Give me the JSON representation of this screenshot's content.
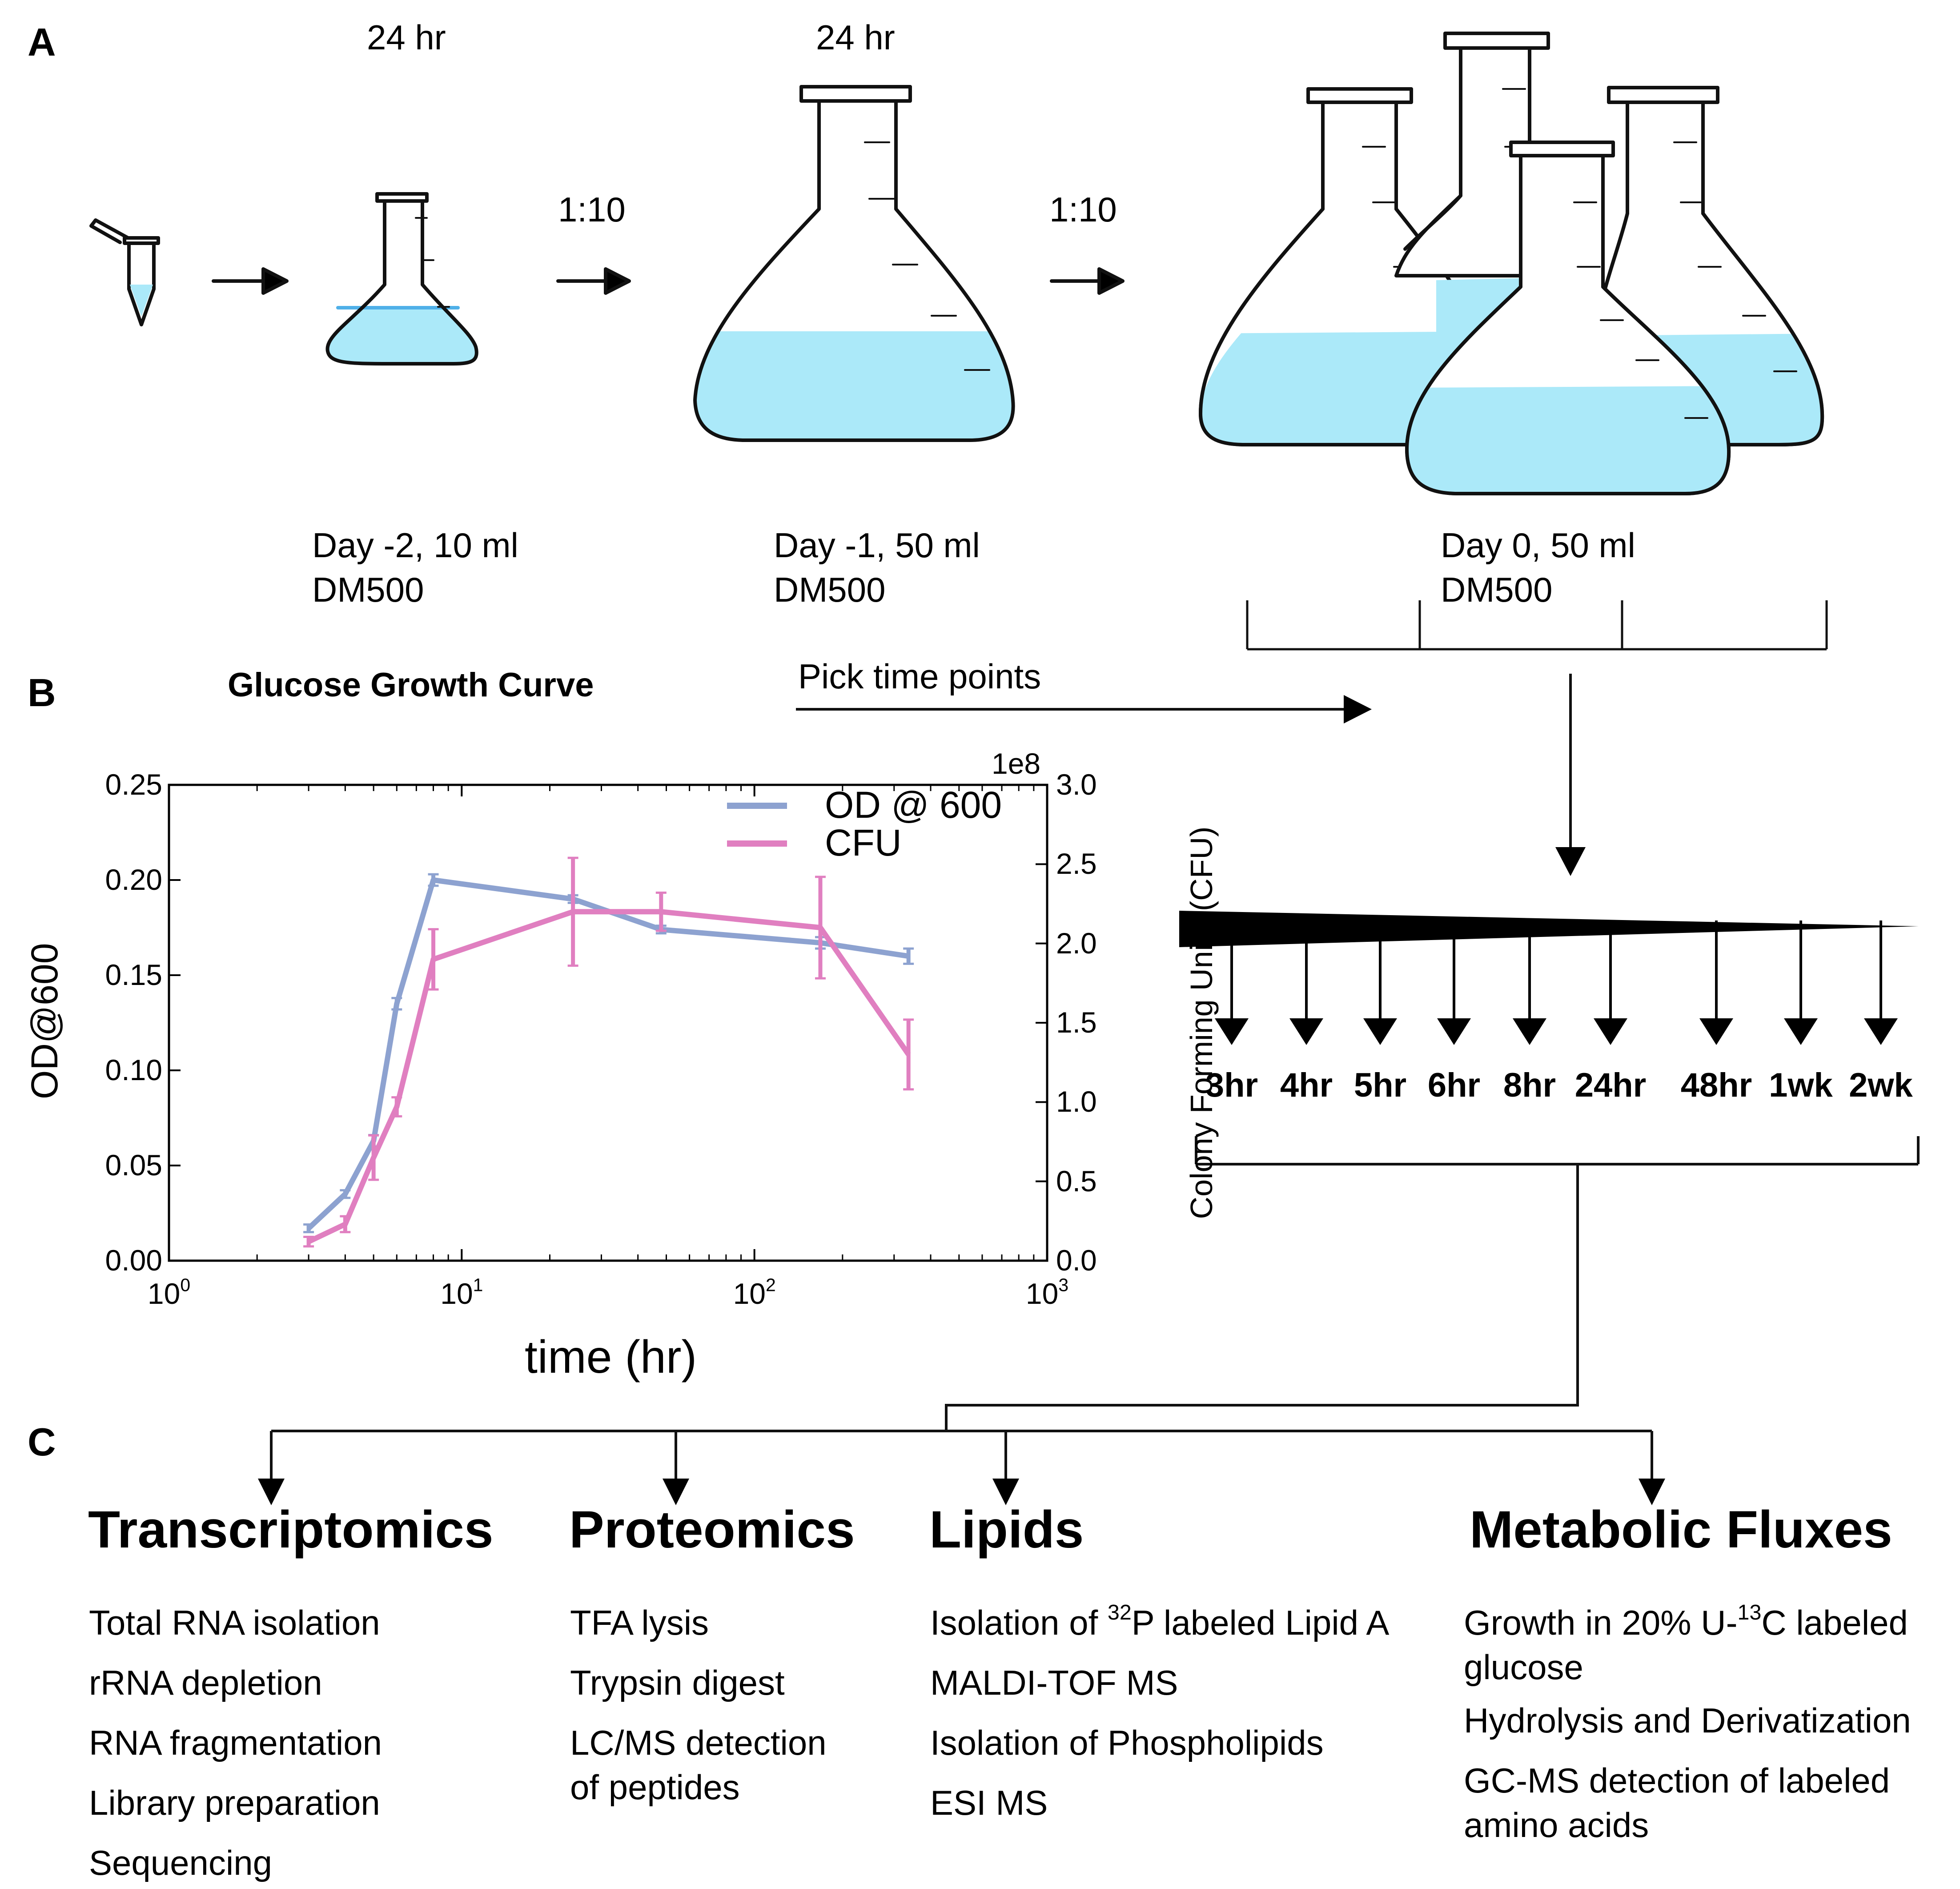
{
  "panels": {
    "A": "A",
    "B": "B",
    "C": "C"
  },
  "panel_a": {
    "step1_time": "24 hr",
    "step2_time": "24 hr",
    "dilution1": "1:10",
    "dilution2": "1:10",
    "flask1_line1": "Day -2, 10 ml",
    "flask1_line2": "DM500",
    "flask2_line1": "Day -1, 50 ml",
    "flask2_line2": "DM500",
    "flask3_line1": "Day 0, 50 ml",
    "flask3_line2": "DM500",
    "liquid_color": "#abe9f9"
  },
  "panel_b": {
    "title": "Glucose Growth Curve",
    "pick_label": "Pick time points",
    "time_points": [
      "3hr",
      "4hr",
      "5hr",
      "6hr",
      "8hr",
      "24hr",
      "48hr",
      "1wk",
      "2wk"
    ]
  },
  "chart_data": {
    "type": "line",
    "xlabel": "time (hr)",
    "ylabel": "OD@600",
    "y2label": "Colony Forming Units (CFU)",
    "y2_multiplier": "1e8",
    "xscale": "log",
    "xlim": [
      1,
      1000
    ],
    "ylim": [
      0,
      0.25
    ],
    "y2lim": [
      0,
      3.0
    ],
    "x_ticks": [
      {
        "base": "10",
        "exp": "0"
      },
      {
        "base": "10",
        "exp": "1"
      },
      {
        "base": "10",
        "exp": "2"
      },
      {
        "base": "10",
        "exp": "3"
      }
    ],
    "y_ticks": [
      "0.00",
      "0.05",
      "0.10",
      "0.15",
      "0.20",
      "0.25"
    ],
    "y2_ticks": [
      "0.0",
      "0.5",
      "1.0",
      "1.5",
      "2.0",
      "2.5",
      "3.0"
    ],
    "legend_position": "top-right",
    "series": [
      {
        "name": "OD @ 600",
        "axis": "left",
        "color": "#8da2d0",
        "x": [
          3,
          4,
          5,
          6,
          8,
          24,
          48,
          168,
          336
        ],
        "y": [
          0.017,
          0.035,
          0.063,
          0.135,
          0.2,
          0.19,
          0.174,
          0.167,
          0.16
        ],
        "err": [
          0.002,
          0.002,
          0.003,
          0.003,
          0.003,
          0.002,
          0.002,
          0.003,
          0.004
        ]
      },
      {
        "name": "CFU",
        "axis": "right",
        "color": "#e07fc0",
        "x": [
          3,
          4,
          5,
          6,
          8,
          24,
          48,
          168,
          336
        ],
        "y": [
          0.12,
          0.23,
          0.65,
          0.97,
          1.9,
          2.2,
          2.2,
          2.1,
          1.3
        ],
        "err": [
          0.03,
          0.05,
          0.14,
          0.06,
          0.19,
          0.34,
          0.12,
          0.32,
          0.22
        ]
      }
    ]
  },
  "panel_c": {
    "columns": [
      {
        "title": "Transcriptomics",
        "steps": [
          "Total RNA isolation",
          "rRNA depletion",
          "RNA fragmentation",
          "Library preparation",
          "Sequencing"
        ]
      },
      {
        "title": "Proteomics",
        "steps": [
          "TFA lysis",
          "Trypsin digest",
          "LC/MS detection of peptides"
        ]
      },
      {
        "title": "Lipids",
        "steps": [
          "P labeled Lipid A",
          "MALDI-TOF MS",
          "Isolation of Phospholipids",
          "ESI MS"
        ],
        "step1_prefix": "Isolation of ",
        "step1_sup": "32"
      },
      {
        "title": "Metabolic Fluxes",
        "steps": [
          "C labeled glucose",
          "Hydrolysis and Derivatization",
          "GC-MS detection of labeled amino acids"
        ],
        "step1_prefix": "Growth in 20% U-",
        "step1_sup": "13"
      }
    ]
  }
}
